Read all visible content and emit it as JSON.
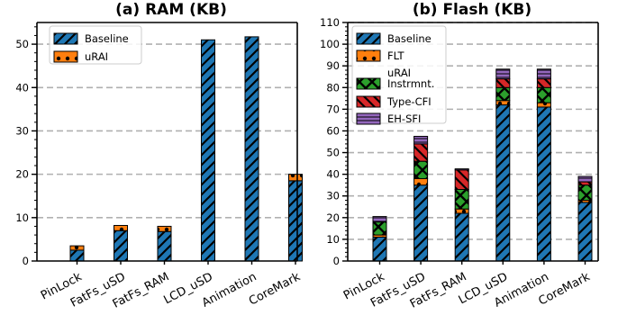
{
  "colors": {
    "Baseline": "#1f77b4",
    "FLT": "#ff7f0e",
    "uRAI": "#ff7f0e",
    "uRAI Instrmnt.": "#2ca02c",
    "Type-CFI": "#d62728",
    "EH-SFI": "#9467bd"
  },
  "chart_data": [
    {
      "type": "bar",
      "stacked": true,
      "title": "(a) RAM (KB)",
      "categories": [
        "PinLock",
        "FatFs_uSD",
        "FatFs_RAM",
        "LCD_uSD",
        "Animation",
        "CoreMark"
      ],
      "series": [
        {
          "name": "Baseline",
          "pattern": "diagonal-hatch",
          "values": [
            2.5,
            7.0,
            6.8,
            51.0,
            51.7,
            18.5
          ]
        },
        {
          "name": "uRAI",
          "pattern": "dots",
          "values": [
            1.0,
            1.2,
            1.2,
            0.0,
            0.0,
            1.5
          ]
        }
      ],
      "ylim": [
        0,
        55
      ],
      "yticks": [
        0,
        10,
        20,
        30,
        40,
        50
      ],
      "xlabel": "",
      "ylabel": "",
      "grid": "horizontal-dashed",
      "legend": "top-left"
    },
    {
      "type": "bar",
      "stacked": true,
      "title": "(b) Flash (KB)",
      "categories": [
        "PinLock",
        "FatFs_uSD",
        "FatFs_RAM",
        "LCD_uSD",
        "Animation",
        "CoreMark"
      ],
      "series": [
        {
          "name": "Baseline",
          "pattern": "diagonal-hatch",
          "values": [
            11,
            35,
            22,
            72,
            71,
            27
          ]
        },
        {
          "name": "FLT",
          "pattern": "dots",
          "values": [
            1,
            3,
            2,
            2,
            2,
            1
          ]
        },
        {
          "name": "uRAI Instrmnt.",
          "pattern": "cross-hatch",
          "values": [
            6,
            8,
            9,
            6,
            7,
            7
          ]
        },
        {
          "name": "Type-CFI",
          "pattern": "backslash-hatch",
          "values": [
            0,
            8,
            9,
            4,
            4,
            1.5
          ]
        },
        {
          "name": "EH-SFI",
          "pattern": "horizontal-lines",
          "values": [
            2.5,
            3.5,
            0.5,
            4.5,
            4.5,
            2.5
          ]
        }
      ],
      "legend_labels": [
        "Baseline",
        "FLT",
        "uRAI",
        "Instrmnt.",
        "Type-CFI",
        "EH-SFI"
      ],
      "ylim": [
        0,
        110
      ],
      "yticks": [
        0,
        10,
        20,
        30,
        40,
        50,
        60,
        70,
        80,
        90,
        100,
        110
      ],
      "xlabel": "",
      "ylabel": "",
      "grid": "horizontal-dashed",
      "legend": "top-left"
    }
  ]
}
